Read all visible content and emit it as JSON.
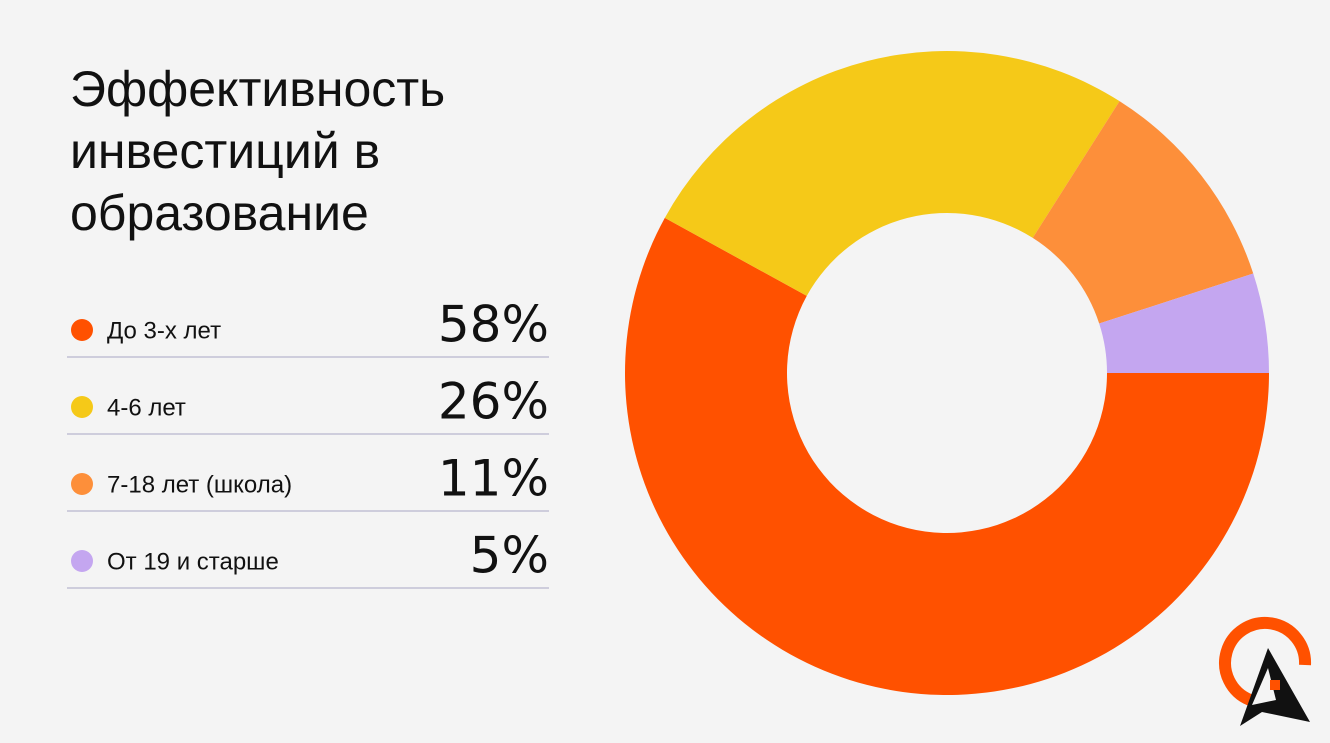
{
  "chart_data": {
    "type": "donut",
    "title": "Эффективность инвестиций в образование",
    "categories": [
      "До 3-х лет",
      "4-6 лет",
      "7-18 лет (школа)",
      "От 19 и старше"
    ],
    "values": [
      58,
      26,
      11,
      5
    ],
    "value_labels": [
      "58%",
      "26%",
      "11%",
      "5%"
    ],
    "colors": [
      "#ff5100",
      "#f5c918",
      "#fd8f3a",
      "#c4a6f0"
    ]
  }
}
